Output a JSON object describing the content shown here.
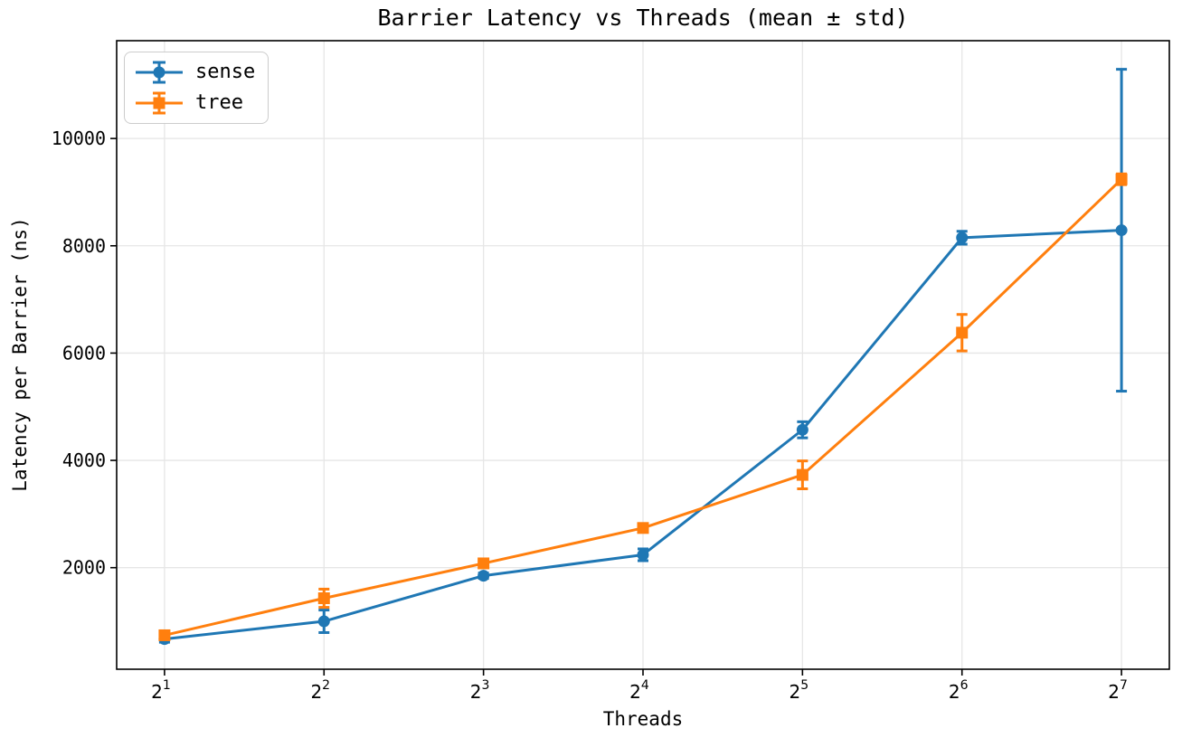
{
  "figure": {
    "title": "Barrier Latency vs Threads (mean ± std)",
    "xlabel": "Threads",
    "ylabel": "Latency per Barrier (ns)"
  },
  "chart_data": {
    "type": "line",
    "title": "Barrier Latency vs Threads (mean ± std)",
    "xlabel": "Threads",
    "ylabel": "Latency per Barrier (ns)",
    "x_scale": "log2",
    "x_tick_base": "2",
    "x_exponents": [
      1,
      2,
      3,
      4,
      5,
      6,
      7
    ],
    "x_values": [
      2,
      4,
      8,
      16,
      32,
      64,
      128
    ],
    "yticks": [
      2000,
      4000,
      6000,
      8000,
      10000
    ],
    "xlim_exponent": [
      0.7,
      7.3
    ],
    "ylim": [
      107,
      11823
    ],
    "grid": true,
    "error_bars": true,
    "legend_position": "upper left",
    "series": [
      {
        "name": "sense",
        "color": "#1f77b4",
        "marker": "circle",
        "mean": [
          670,
          1000,
          1850,
          2240,
          4570,
          8150,
          8290
        ],
        "std": [
          60,
          210,
          50,
          110,
          150,
          120,
          3000
        ]
      },
      {
        "name": "tree",
        "color": "#ff7f0e",
        "marker": "square",
        "mean": [
          740,
          1430,
          2080,
          2740,
          3730,
          6380,
          9240
        ],
        "std": [
          50,
          170,
          60,
          70,
          260,
          340,
          100
        ]
      }
    ],
    "style": {
      "grid_color": "#e6e6e6",
      "spine_color": "#000000",
      "text_color": "#000000",
      "legend_edge_color": "#cccccc",
      "background": "#ffffff"
    }
  }
}
